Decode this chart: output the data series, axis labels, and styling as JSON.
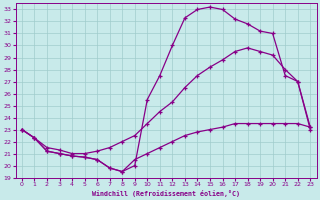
{
  "xlabel": "Windchill (Refroidissement éolien,°C)",
  "xlim": [
    -0.5,
    23.5
  ],
  "ylim": [
    19,
    33.5
  ],
  "xticks": [
    0,
    1,
    2,
    3,
    4,
    5,
    6,
    7,
    8,
    9,
    10,
    11,
    12,
    13,
    14,
    15,
    16,
    17,
    18,
    19,
    20,
    21,
    22,
    23
  ],
  "yticks": [
    19,
    20,
    21,
    22,
    23,
    24,
    25,
    26,
    27,
    28,
    29,
    30,
    31,
    32,
    33
  ],
  "bg_color": "#c8eaea",
  "line_color": "#880088",
  "grid_color": "#a0cccc",
  "line1_x": [
    0,
    1,
    2,
    3,
    4,
    5,
    6,
    7,
    8,
    9,
    10,
    11,
    12,
    13,
    14,
    15,
    16,
    17,
    18,
    19,
    20,
    21,
    22,
    23
  ],
  "line1_y": [
    23.0,
    22.3,
    21.2,
    21.0,
    20.8,
    20.7,
    20.5,
    19.8,
    19.5,
    20.0,
    25.5,
    27.5,
    30.0,
    32.3,
    33.0,
    33.2,
    33.0,
    32.2,
    31.8,
    31.2,
    31.0,
    27.5,
    27.0,
    23.2
  ],
  "line2_x": [
    0,
    1,
    2,
    3,
    4,
    5,
    6,
    7,
    8,
    9,
    10,
    11,
    12,
    13,
    14,
    15,
    16,
    17,
    18,
    19,
    20,
    21,
    22,
    23
  ],
  "line2_y": [
    23.0,
    22.3,
    21.5,
    21.3,
    21.0,
    21.0,
    21.2,
    21.5,
    22.0,
    22.5,
    23.5,
    24.5,
    25.3,
    26.5,
    27.5,
    28.2,
    28.8,
    29.5,
    29.8,
    29.5,
    29.2,
    28.0,
    27.0,
    23.0
  ],
  "line3_x": [
    0,
    1,
    2,
    3,
    4,
    5,
    6,
    7,
    8,
    9,
    10,
    11,
    12,
    13,
    14,
    15,
    16,
    17,
    18,
    19,
    20,
    21,
    22,
    23
  ],
  "line3_y": [
    23.0,
    22.3,
    21.2,
    21.0,
    20.8,
    20.7,
    20.5,
    19.8,
    19.5,
    20.5,
    21.0,
    21.5,
    22.0,
    22.5,
    22.8,
    23.0,
    23.2,
    23.5,
    23.5,
    23.5,
    23.5,
    23.5,
    23.5,
    23.2
  ]
}
